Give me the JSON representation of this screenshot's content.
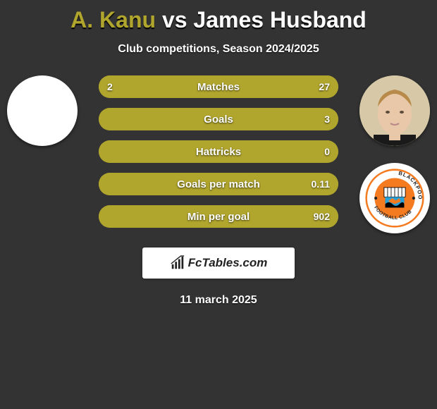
{
  "title": {
    "player_a": "A. Kanu",
    "vs": "vs",
    "player_b": "James Husband"
  },
  "subtitle": "Club competitions, Season 2024/2025",
  "colors": {
    "player_a": "#b0a52d",
    "player_b": "#ffffff",
    "background": "#333333",
    "bar_track": "#b0a52d",
    "bar_fill_a": "#b0a52d",
    "bar_fill_b": "#b0a52d"
  },
  "stats": [
    {
      "label": "Matches",
      "a": "2",
      "b": "27",
      "a_pct": 7,
      "b_pct": 93
    },
    {
      "label": "Goals",
      "a": "",
      "b": "3",
      "a_pct": 0,
      "b_pct": 100
    },
    {
      "label": "Hattricks",
      "a": "",
      "b": "0",
      "a_pct": 0,
      "b_pct": 100
    },
    {
      "label": "Goals per match",
      "a": "",
      "b": "0.11",
      "a_pct": 0,
      "b_pct": 100
    },
    {
      "label": "Min per goal",
      "a": "",
      "b": "902",
      "a_pct": 0,
      "b_pct": 100
    }
  ],
  "watermark": "FcTables.com",
  "date": "11 march 2025",
  "club_b": "Blackpool Football Club"
}
